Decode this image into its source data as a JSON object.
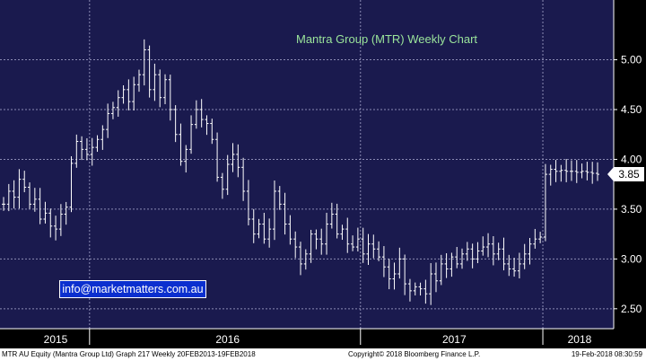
{
  "chart_data": {
    "type": "ohlc",
    "title": "Mantra Group (MTR) Weekly Chart",
    "ylim": [
      2.3,
      5.6
    ],
    "y_ticks": [
      "2.50",
      "3.00",
      "3.50",
      "4.00",
      "4.50",
      "5.00"
    ],
    "x_labels": [
      "2015",
      "2016",
      "2017",
      "2018"
    ],
    "last_value": "3.85",
    "grid": true,
    "series": [
      {
        "values": [
          3.55,
          3.68,
          3.62,
          3.8,
          3.72,
          3.55,
          3.6,
          3.4,
          3.46,
          3.33,
          3.3,
          3.45,
          3.52,
          3.96,
          4.18,
          4.1,
          4.05,
          4.12,
          4.2,
          4.3,
          4.46,
          4.52,
          4.62,
          4.7,
          4.58,
          4.75,
          4.85,
          5.1,
          4.7,
          4.85,
          4.62,
          4.8,
          4.5,
          4.25,
          3.98,
          4.1,
          4.35,
          4.5,
          4.4,
          4.36,
          4.2,
          3.82,
          3.7,
          3.95,
          4.05,
          3.92,
          3.68,
          3.4,
          3.25,
          3.35,
          3.2,
          3.3,
          3.68,
          3.55,
          3.35,
          3.2,
          3.12,
          2.95,
          3.05,
          3.25,
          3.2,
          3.15,
          3.35,
          3.45,
          3.25,
          3.3,
          3.15,
          3.12,
          3.2,
          3.05,
          3.15,
          3.1,
          3.02,
          2.92,
          2.8,
          2.85,
          3.0,
          2.75,
          2.68,
          2.72,
          2.7,
          2.65,
          2.85,
          2.78,
          2.95,
          2.9,
          3.02,
          2.95,
          3.05,
          3.1,
          3.0,
          3.08,
          3.12,
          3.15,
          3.05,
          3.1,
          2.95,
          2.9,
          2.88,
          2.95,
          3.05,
          3.15,
          3.2,
          3.22,
          3.85,
          3.9,
          3.88,
          3.89,
          3.88,
          3.88,
          3.87,
          3.88,
          3.87,
          3.86,
          3.85
        ]
      }
    ]
  },
  "footer": {
    "left": "MTR AU Equity (Mantra Group Ltd) Graph 217  Weekly 20FEB2013-19FEB2018",
    "center": "Copyright© 2018 Bloomberg Finance L.P.",
    "right": "19-Feb-2018 08:30:59"
  },
  "watermark": "info@marketmatters.com.au"
}
